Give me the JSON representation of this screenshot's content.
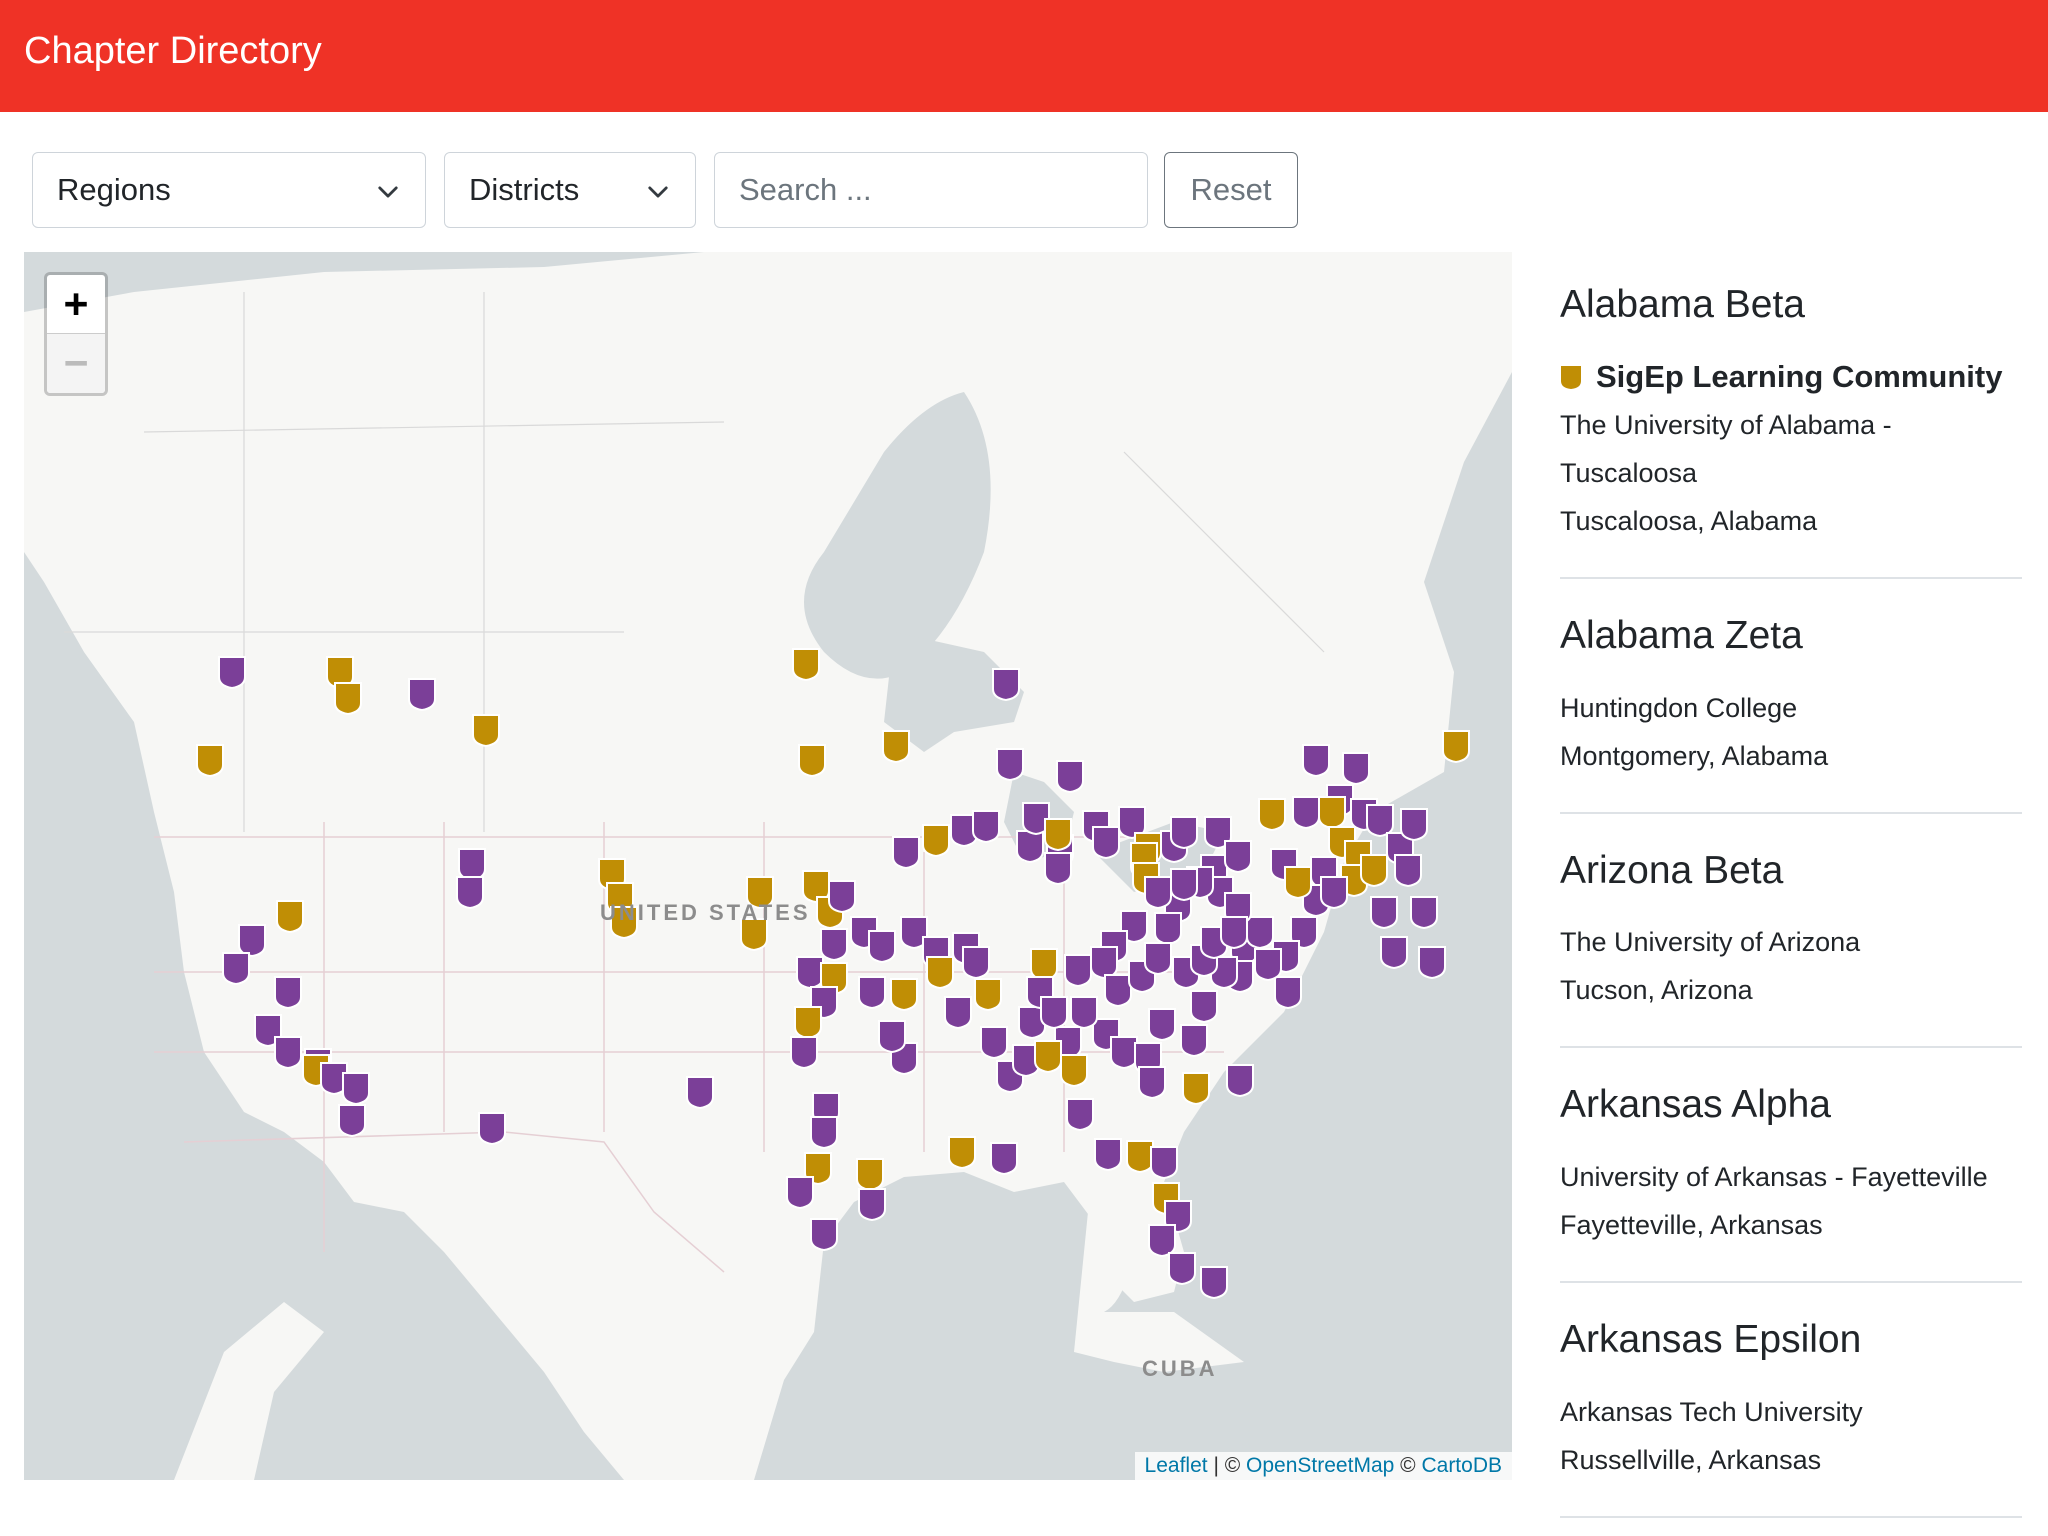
{
  "header": {
    "title": "Chapter Directory"
  },
  "filters": {
    "regions_label": "Regions",
    "districts_label": "Districts",
    "search_placeholder": "Search ...",
    "reset_label": "Reset"
  },
  "map": {
    "zoom_in": "+",
    "zoom_out": "−",
    "country_label": "UNITED STATES",
    "cuba_label": "CUBA",
    "attribution": {
      "leaflet": "Leaflet",
      "sep": " | © ",
      "osm": "OpenStreetMap",
      "copy": " © ",
      "carto": "CartoDB"
    },
    "colors": {
      "chapter": "#7b3f98",
      "slc": "#c08e05",
      "land": "#f7f7f5",
      "water": "#d4dadc"
    }
  },
  "chapters": [
    {
      "name": "Alabama Beta",
      "slc_label": "SigEp Learning Community",
      "school": "The University of Alabama - Tuscaloosa",
      "location": "Tuscaloosa, Alabama"
    },
    {
      "name": "Alabama Zeta",
      "school": "Huntingdon College",
      "location": "Montgomery, Alabama"
    },
    {
      "name": "Arizona Beta",
      "school": "The University of Arizona",
      "location": "Tucson, Arizona"
    },
    {
      "name": "Arkansas Alpha",
      "school": "University of Arkansas - Fayetteville",
      "location": "Fayetteville, Arkansas"
    },
    {
      "name": "Arkansas Epsilon",
      "school": "Arkansas Tech University",
      "location": "Russellville, Arkansas"
    }
  ]
}
